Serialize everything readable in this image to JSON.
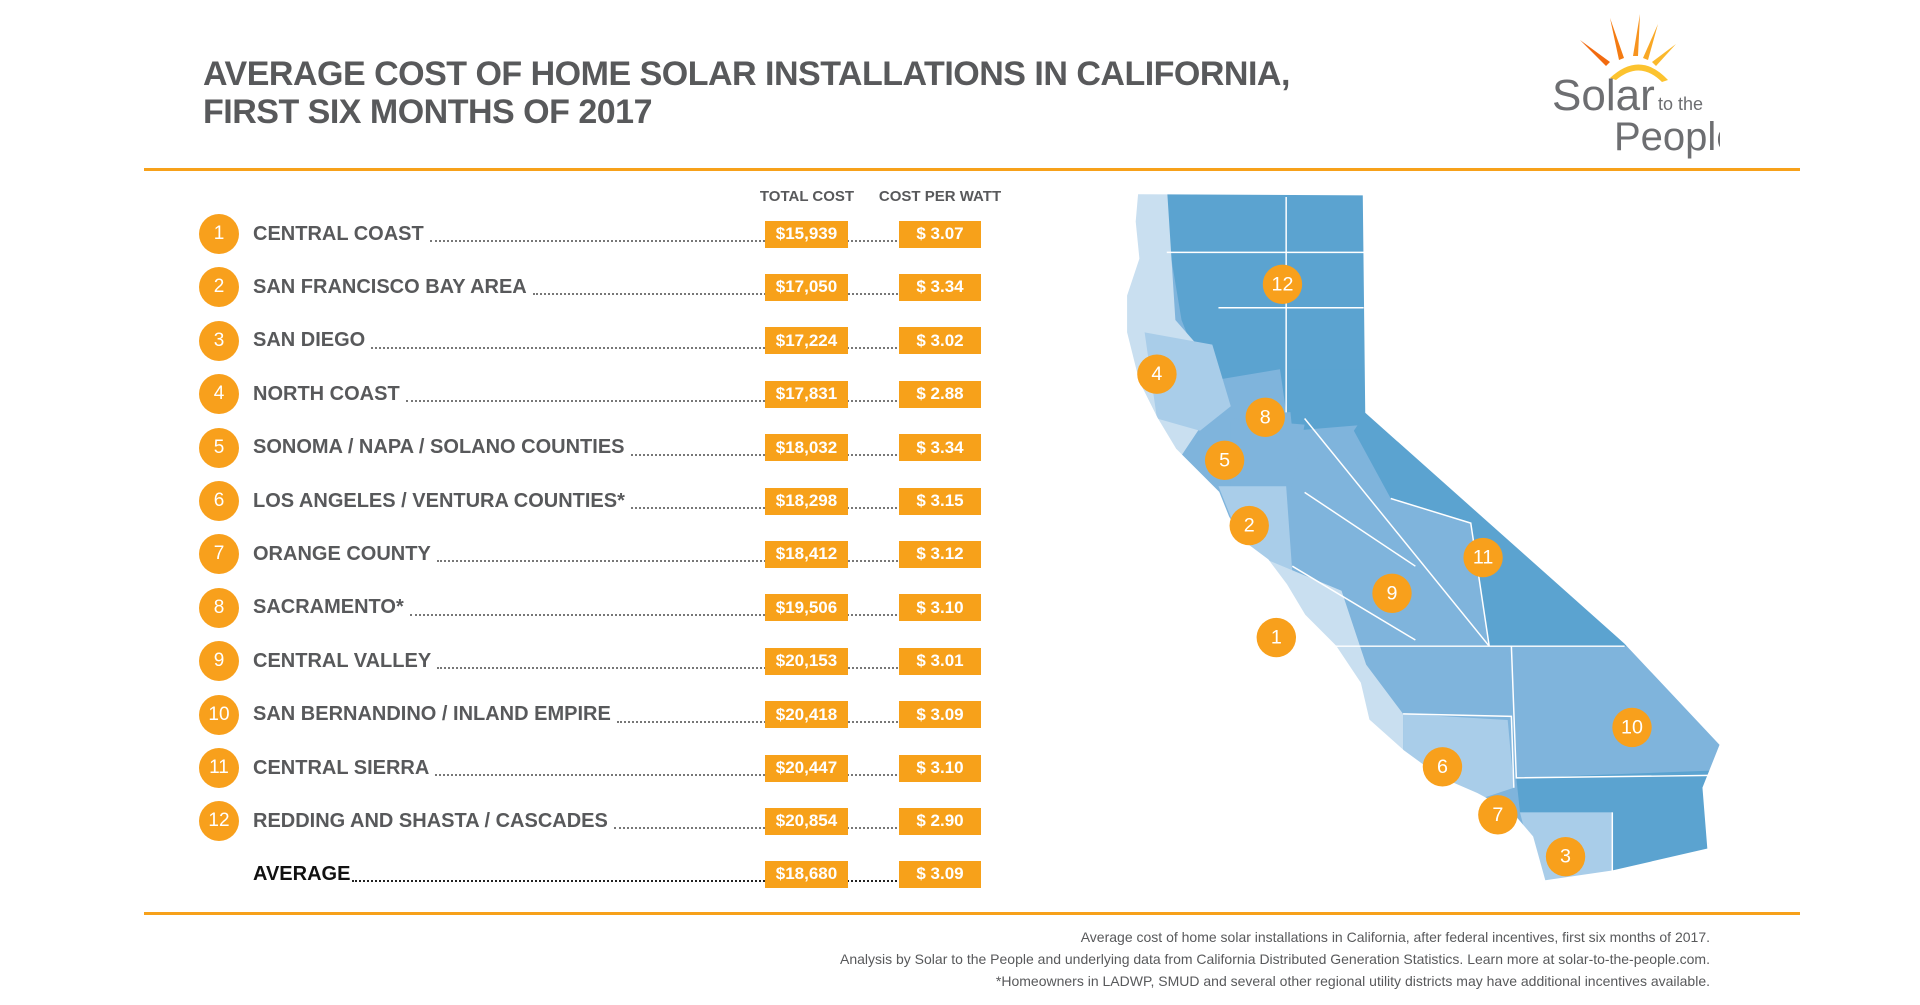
{
  "title_line1": "AVERAGE COST OF HOME SOLAR INSTALLATIONS IN CALIFORNIA,",
  "title_line2": "FIRST SIX MONTHS OF 2017",
  "logo": {
    "word1": "Solar",
    "word2": "to the",
    "word3": "People"
  },
  "columns": {
    "total": "TOTAL COST",
    "per_watt": "COST PER WATT"
  },
  "rows": [
    {
      "num": "1",
      "label": "CENTRAL COAST",
      "total": "$15,939",
      "per_watt": "$ 3.07"
    },
    {
      "num": "2",
      "label": "SAN FRANCISCO BAY AREA",
      "total": "$17,050",
      "per_watt": "$ 3.34"
    },
    {
      "num": "3",
      "label": "SAN  DIEGO",
      "total": "$17,224",
      "per_watt": "$ 3.02"
    },
    {
      "num": "4",
      "label": "NORTH COAST",
      "total": "$17,831",
      "per_watt": "$ 2.88"
    },
    {
      "num": "5",
      "label": "SONOMA / NAPA / SOLANO COUNTIES",
      "total": "$18,032",
      "per_watt": "$ 3.34"
    },
    {
      "num": "6",
      "label": "LOS ANGELES / VENTURA COUNTIES*",
      "total": "$18,298",
      "per_watt": "$ 3.15"
    },
    {
      "num": "7",
      "label": "ORANGE COUNTY",
      "total": "$18,412",
      "per_watt": "$ 3.12"
    },
    {
      "num": "8",
      "label": "SACRAMENTO*",
      "total": "$19,506",
      "per_watt": "$ 3.10"
    },
    {
      "num": "9",
      "label": "CENTRAL VALLEY",
      "total": "$20,153",
      "per_watt": "$ 3.01"
    },
    {
      "num": "10",
      "label": "SAN BERNANDINO / INLAND EMPIRE",
      "total": "$20,418",
      "per_watt": "$ 3.09"
    },
    {
      "num": "11",
      "label": "CENTRAL SIERRA",
      "total": "$20,447",
      "per_watt": "$ 3.10"
    },
    {
      "num": "12",
      "label": "REDDING AND SHASTA / CASCADES",
      "total": "$20,854",
      "per_watt": "$ 2.90"
    }
  ],
  "average": {
    "label": "AVERAGE",
    "total": "$18,680",
    "per_watt": "$ 3.09"
  },
  "footer": [
    "Average cost of home solar installations in California, after federal incentives, first six months of 2017.",
    "Analysis by Solar to the People and underlying data from California Distributed Generation Statistics. Learn more at solar-to-the-people.com.",
    "*Homeowners in LADWP, SMUD and several other regional utility districts may have additional incentives available."
  ],
  "colors": {
    "accent": "#f7a11a",
    "map_dark": "#5ba3d0",
    "map_mid": "#7fb4dc",
    "map_light": "#a9cde9",
    "map_pale": "#c9dff0"
  },
  "map_markers": [
    "12",
    "4",
    "8",
    "5",
    "2",
    "11",
    "9",
    "1",
    "10",
    "6",
    "7",
    "3"
  ]
}
